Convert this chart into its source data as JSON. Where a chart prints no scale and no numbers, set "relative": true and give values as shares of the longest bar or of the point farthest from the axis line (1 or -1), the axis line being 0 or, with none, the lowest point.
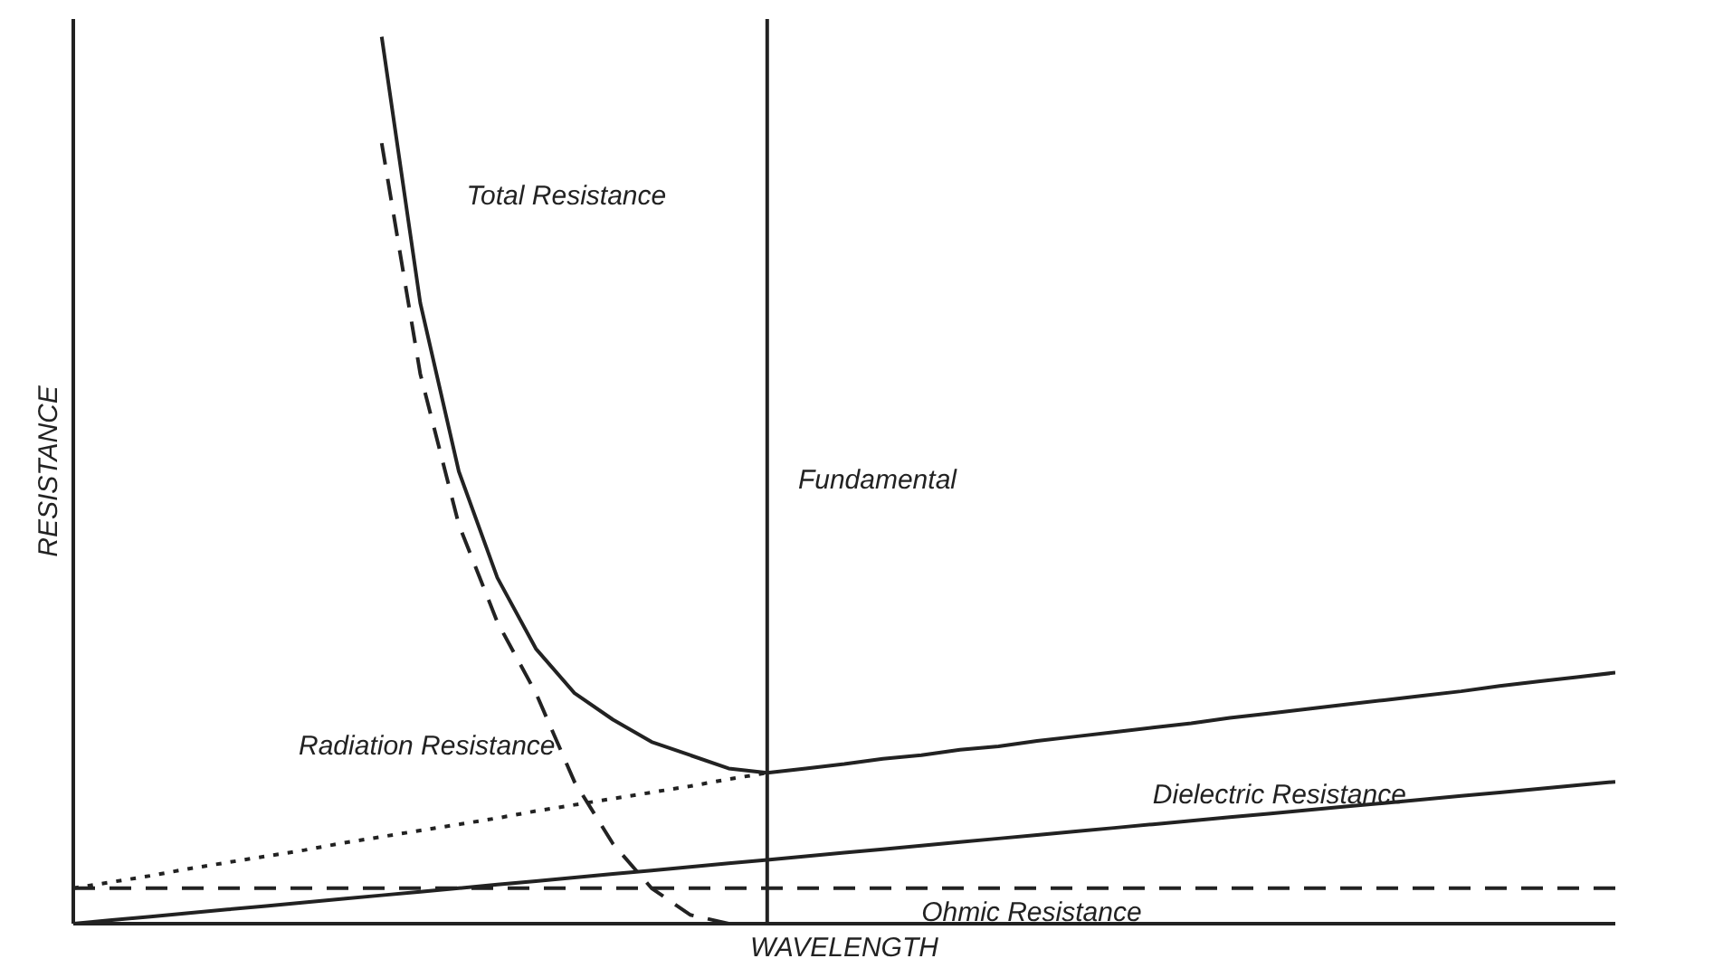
{
  "chart_data": {
    "type": "line",
    "relative": true,
    "xlabel": "WAVELENGTH",
    "ylabel": "RESISTANCE",
    "categories": [
      null,
      null,
      null,
      null,
      null,
      null,
      null,
      null,
      null,
      null,
      null,
      null,
      null,
      null,
      null,
      null,
      null,
      null,
      null,
      null,
      null,
      null,
      null,
      null,
      null,
      null,
      null,
      null,
      null,
      null,
      null,
      null,
      null,
      null,
      null,
      null,
      null,
      null,
      null,
      null,
      null
    ],
    "series": [
      {
        "name": "Total Resistance",
        "color": "#222222",
        "line_style": "solid",
        "values": [
          null,
          null,
          null,
          null,
          null,
          null,
          null,
          null,
          1.0,
          0.7,
          0.51,
          0.39,
          0.31,
          0.26,
          0.23,
          0.205,
          0.19,
          0.175,
          0.17,
          0.175,
          0.18,
          0.186,
          0.19,
          0.196,
          0.2,
          0.206,
          0.211,
          0.216,
          0.221,
          0.226,
          0.232,
          0.237,
          0.242,
          0.247,
          0.252,
          0.257,
          0.262,
          0.268,
          0.273,
          0.278,
          0.283
        ]
      },
      {
        "name": "Radiation Resistance",
        "color": "#222222",
        "line_style": "dashed",
        "values": [
          null,
          null,
          null,
          null,
          null,
          null,
          null,
          null,
          0.88,
          0.62,
          0.45,
          0.34,
          0.26,
          0.16,
          0.09,
          0.04,
          0.01,
          0.0,
          null,
          null,
          null,
          null,
          null,
          null,
          null,
          null,
          null,
          null,
          null,
          null,
          null,
          null,
          null,
          null,
          null,
          null,
          null,
          null,
          null,
          null,
          null
        ]
      },
      {
        "name": "Dielectric Resistance",
        "color": "#222222",
        "line_style": "solid",
        "values": [
          0.0,
          0.004,
          0.008,
          0.012,
          0.016,
          0.02,
          0.024,
          0.028,
          0.032,
          0.036,
          0.04,
          0.044,
          0.048,
          0.052,
          0.056,
          0.06,
          0.064,
          0.068,
          0.072,
          0.076,
          0.08,
          0.084,
          0.088,
          0.092,
          0.096,
          0.1,
          0.104,
          0.108,
          0.112,
          0.116,
          0.12,
          0.124,
          0.128,
          0.132,
          0.136,
          0.14,
          0.144,
          0.148,
          0.152,
          0.156,
          0.16
        ]
      },
      {
        "name": "Ohmic Resistance",
        "color": "#222222",
        "line_style": "dashed",
        "values": [
          0.04,
          0.04,
          0.04,
          0.04,
          0.04,
          0.04,
          0.04,
          0.04,
          0.04,
          0.04,
          0.04,
          0.04,
          0.04,
          0.04,
          0.04,
          0.04,
          0.04,
          0.04,
          0.04,
          0.04,
          0.04,
          0.04,
          0.04,
          0.04,
          0.04,
          0.04,
          0.04,
          0.04,
          0.04,
          0.04,
          0.04,
          0.04,
          0.04,
          0.04,
          0.04,
          0.04,
          0.04,
          0.04,
          0.04,
          0.04,
          0.04
        ]
      },
      {
        "color": "#222222",
        "line_style": "dotted",
        "values": [
          0.04,
          0.047,
          0.054,
          0.062,
          0.069,
          0.076,
          0.083,
          0.091,
          0.098,
          0.105,
          0.112,
          0.119,
          0.127,
          0.134,
          0.141,
          0.148,
          0.155,
          0.163,
          0.17,
          null,
          null,
          null,
          null,
          null,
          null,
          null,
          null,
          null,
          null,
          null,
          null,
          null,
          null,
          null,
          null,
          null,
          null,
          null,
          null,
          null,
          null
        ]
      }
    ],
    "annotations": [
      "Fundamental"
    ]
  }
}
